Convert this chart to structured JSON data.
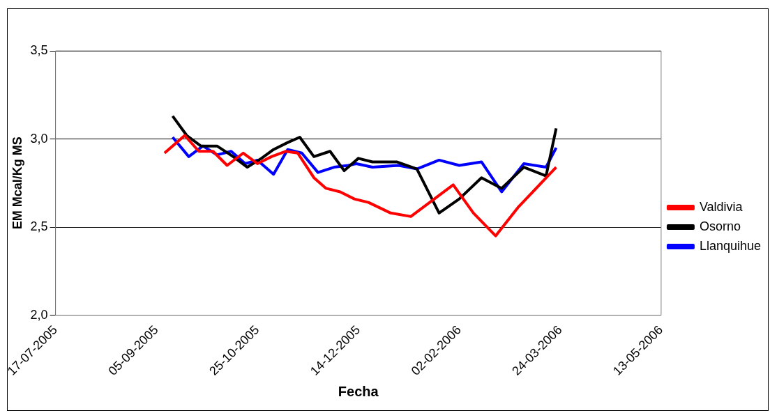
{
  "chart_data": {
    "type": "line",
    "xlabel": "Fecha",
    "ylabel": "EM Mcal/Kg MS",
    "xlim": [
      "2005-07-17",
      "2006-05-13"
    ],
    "xticks": [
      {
        "value": "2005-07-17",
        "label": "17-07-2005"
      },
      {
        "value": "2005-09-05",
        "label": "05-09-2005"
      },
      {
        "value": "2005-10-25",
        "label": "25-10-2005"
      },
      {
        "value": "2005-12-14",
        "label": "14-12-2005"
      },
      {
        "value": "2006-02-02",
        "label": "02-02-2006"
      },
      {
        "value": "2006-03-24",
        "label": "24-03-2006"
      },
      {
        "value": "2006-05-13",
        "label": "13-05-2006"
      }
    ],
    "ylim": [
      2.0,
      3.5
    ],
    "yticks": [
      {
        "value": 2.0,
        "label": "2,0"
      },
      {
        "value": 2.5,
        "label": "2,5"
      },
      {
        "value": 3.0,
        "label": "3,0"
      },
      {
        "value": 3.5,
        "label": "3,5"
      }
    ],
    "grid": "y",
    "legend": "right",
    "marker": "none",
    "line_style": "solid",
    "series": [
      {
        "name": "Valdivia",
        "color": "#ff0000",
        "x": [
          "2005-09-09",
          "2005-09-19",
          "2005-09-26",
          "2005-10-03",
          "2005-10-10",
          "2005-10-18",
          "2005-10-25",
          "2005-11-01",
          "2005-11-08",
          "2005-11-14",
          "2005-11-22",
          "2005-11-28",
          "2005-12-05",
          "2005-12-12",
          "2005-12-19",
          "2005-12-30",
          "2006-01-09",
          "2006-01-30",
          "2006-02-09",
          "2006-02-20",
          "2006-03-03",
          "2006-03-22"
        ],
        "values": [
          2.92,
          3.02,
          2.93,
          2.93,
          2.85,
          2.92,
          2.86,
          2.9,
          2.93,
          2.92,
          2.78,
          2.72,
          2.7,
          2.66,
          2.64,
          2.58,
          2.56,
          2.74,
          2.58,
          2.45,
          2.61,
          2.84
        ]
      },
      {
        "name": "Osorno",
        "color": "#000000",
        "x": [
          "2005-09-13",
          "2005-09-20",
          "2005-09-27",
          "2005-10-05",
          "2005-10-13",
          "2005-10-20",
          "2005-10-27",
          "2005-11-02",
          "2005-11-09",
          "2005-11-15",
          "2005-11-22",
          "2005-11-30",
          "2005-12-07",
          "2005-12-14",
          "2005-12-21",
          "2006-01-02",
          "2006-01-12",
          "2006-01-23",
          "2006-02-02",
          "2006-02-13",
          "2006-02-23",
          "2006-03-06",
          "2006-03-17",
          "2006-03-22"
        ],
        "values": [
          3.13,
          3.02,
          2.96,
          2.96,
          2.9,
          2.84,
          2.89,
          2.94,
          2.98,
          3.01,
          2.9,
          2.93,
          2.82,
          2.89,
          2.87,
          2.87,
          2.83,
          2.58,
          2.66,
          2.78,
          2.72,
          2.84,
          2.79,
          3.06
        ]
      },
      {
        "name": "Llanquihue",
        "color": "#0000ff",
        "x": [
          "2005-09-13",
          "2005-09-21",
          "2005-09-28",
          "2005-10-05",
          "2005-10-12",
          "2005-10-19",
          "2005-10-25",
          "2005-11-02",
          "2005-11-09",
          "2005-11-16",
          "2005-11-24",
          "2005-12-02",
          "2005-12-09",
          "2005-12-13",
          "2005-12-21",
          "2006-01-03",
          "2006-01-12",
          "2006-01-23",
          "2006-02-02",
          "2006-02-13",
          "2006-02-23",
          "2006-03-06",
          "2006-03-17",
          "2006-03-22"
        ],
        "values": [
          3.01,
          2.9,
          2.96,
          2.91,
          2.93,
          2.86,
          2.88,
          2.8,
          2.94,
          2.92,
          2.81,
          2.84,
          2.85,
          2.86,
          2.84,
          2.85,
          2.83,
          2.88,
          2.85,
          2.87,
          2.7,
          2.86,
          2.84,
          2.95
        ]
      }
    ]
  }
}
